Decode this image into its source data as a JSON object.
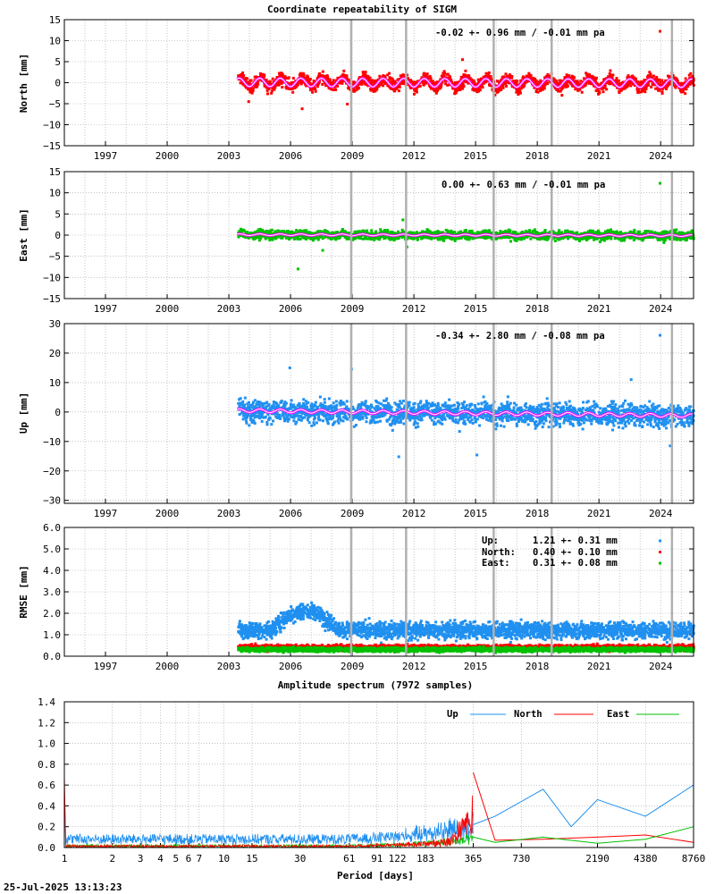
{
  "page": {
    "station": "SIGM",
    "timestamp": "25-Jul-2025 13:13:23"
  },
  "colors": {
    "north": "#ff0000",
    "east": "#00c000",
    "up": "#2090f0",
    "model": "#ff00ff",
    "model_core": "#ffffff",
    "event": "#b0b0b0",
    "grid": "#a0a0a0"
  },
  "chart_data": [
    {
      "id": "north",
      "type": "scatter",
      "title": "Coordinate repeatability of SIGM",
      "ylabel": "North [mm]",
      "xlim": [
        1995.0,
        2025.6
      ],
      "ylim": [
        -15,
        15
      ],
      "yticks": [
        15,
        10,
        5,
        0,
        -5,
        -10,
        -15
      ],
      "ytick_labels": [
        "15",
        "10",
        "5",
        "0",
        "−5",
        "−10",
        "−15"
      ],
      "xticks": [
        1997,
        2000,
        2003,
        2006,
        2009,
        2012,
        2015,
        2018,
        2021,
        2024
      ],
      "xtick_labels": [
        "1997",
        "2000",
        "2003",
        "2006",
        "2009",
        "2012",
        "2015",
        "2018",
        "2021",
        "2024"
      ],
      "data_start": 2003.4,
      "data_end": 2025.55,
      "series": [
        {
          "name": "North",
          "color": "#ff0000",
          "mean": -0.02,
          "wrms": 0.96,
          "annual_amp": 1.0,
          "trend": -0.01,
          "spread": 1.3,
          "outliers": [
            [
              2006.5,
              -6.2
            ],
            [
              2008.7,
              -5.1
            ],
            [
              2014.3,
              5.5
            ],
            [
              2003.9,
              -4.5
            ]
          ]
        }
      ],
      "legend": "-0.02 +- 0.96 mm / -0.01 mm pa",
      "event_epochs": [
        2008.95,
        2011.62,
        2015.88,
        2018.7,
        2024.55
      ]
    },
    {
      "id": "east",
      "type": "scatter",
      "ylabel": "East [mm]",
      "xlim": [
        1995.0,
        2025.6
      ],
      "ylim": [
        -15,
        15
      ],
      "yticks": [
        15,
        10,
        5,
        0,
        -5,
        -10,
        -15
      ],
      "ytick_labels": [
        "15",
        "10",
        "5",
        "0",
        "−5",
        "−10",
        "−15"
      ],
      "xticks": [
        1997,
        2000,
        2003,
        2006,
        2009,
        2012,
        2015,
        2018,
        2021,
        2024
      ],
      "xtick_labels": [
        "1997",
        "2000",
        "2003",
        "2006",
        "2009",
        "2012",
        "2015",
        "2018",
        "2021",
        "2024"
      ],
      "data_start": 2003.4,
      "data_end": 2025.55,
      "series": [
        {
          "name": "East",
          "color": "#00c000",
          "mean": 0.0,
          "wrms": 0.63,
          "annual_amp": 0.2,
          "trend": -0.01,
          "spread": 0.9,
          "outliers": [
            [
              2006.3,
              -8.0
            ],
            [
              2007.5,
              -3.6
            ],
            [
              2011.4,
              3.6
            ],
            [
              2011.6,
              -2.8
            ]
          ]
        }
      ],
      "legend": "0.00 +- 0.63 mm / -0.01 mm pa",
      "event_epochs": [
        2008.95,
        2011.62,
        2015.88,
        2018.7,
        2024.55
      ]
    },
    {
      "id": "up",
      "type": "scatter",
      "ylabel": "Up [mm]",
      "xlim": [
        1995.0,
        2025.6
      ],
      "ylim": [
        -31,
        30
      ],
      "yticks": [
        30,
        20,
        10,
        0,
        -10,
        -20,
        -30
      ],
      "ytick_labels": [
        "30",
        "20",
        "10",
        "0",
        "−10",
        "−20",
        "−30"
      ],
      "xticks": [
        1997,
        2000,
        2003,
        2006,
        2009,
        2012,
        2015,
        2018,
        2021,
        2024
      ],
      "xtick_labels": [
        "1997",
        "2000",
        "2003",
        "2006",
        "2009",
        "2012",
        "2015",
        "2018",
        "2021",
        "2024"
      ],
      "data_start": 2003.4,
      "data_end": 2025.55,
      "series": [
        {
          "name": "Up",
          "color": "#2090f0",
          "mean": -0.34,
          "wrms": 2.8,
          "annual_amp": 0.6,
          "trend": -0.08,
          "spread": 3.4,
          "outliers": [
            [
              2008.9,
              14.5
            ],
            [
              2011.2,
              -15.2
            ],
            [
              2015.0,
              -14.6
            ],
            [
              2005.9,
              15.0
            ],
            [
              2024.4,
              -11.5
            ],
            [
              2022.5,
              11.0
            ]
          ]
        }
      ],
      "legend": "-0.34 +- 2.80 mm / -0.08 mm pa",
      "event_epochs": [
        2008.95,
        2011.62,
        2015.88,
        2018.7,
        2024.55
      ]
    },
    {
      "id": "rmse",
      "type": "scatter",
      "ylabel": "RMSE [mm]",
      "xlim": [
        1995.0,
        2025.6
      ],
      "ylim": [
        0,
        6
      ],
      "yticks": [
        6,
        5,
        4,
        3,
        2,
        1,
        0
      ],
      "ytick_labels": [
        "6.0",
        "5.0",
        "4.0",
        "3.0",
        "2.0",
        "1.0",
        "0.0"
      ],
      "xticks": [
        1997,
        2000,
        2003,
        2006,
        2009,
        2012,
        2015,
        2018,
        2021,
        2024
      ],
      "xtick_labels": [
        "1997",
        "2000",
        "2003",
        "2006",
        "2009",
        "2012",
        "2015",
        "2018",
        "2021",
        "2024"
      ],
      "data_start": 2003.4,
      "data_end": 2025.55,
      "series": [
        {
          "name": "Up",
          "color": "#2090f0",
          "mean": 1.21,
          "std": 0.31,
          "legend_label": "Up:",
          "legend_value": "1.21 +- 0.31 mm"
        },
        {
          "name": "North",
          "color": "#ff0000",
          "mean": 0.4,
          "std": 0.1,
          "legend_label": "North:",
          "legend_value": "0.40 +- 0.10 mm"
        },
        {
          "name": "East",
          "color": "#00c000",
          "mean": 0.31,
          "std": 0.08,
          "legend_label": "East:",
          "legend_value": "0.31 +- 0.08 mm"
        }
      ],
      "event_epochs": [
        2008.95,
        2011.62,
        2015.88,
        2018.7,
        2024.55
      ]
    },
    {
      "id": "spectrum",
      "type": "line",
      "title": "Amplitude spectrum (7972 samples)",
      "xlabel": "Period [days]",
      "xscale": "log",
      "xlim": [
        1,
        8760
      ],
      "ylim": [
        0,
        1.4
      ],
      "yticks": [
        1.4,
        1.2,
        1.0,
        0.8,
        0.6,
        0.4,
        0.2,
        0.0
      ],
      "ytick_labels": [
        "1.4",
        "1.2",
        "1.0",
        "0.8",
        "0.6",
        "0.4",
        "0.2",
        "0.0"
      ],
      "xticks": [
        1,
        2,
        3,
        4,
        5,
        6,
        7,
        10,
        15,
        30,
        61,
        91,
        122,
        183,
        365,
        730,
        2190,
        4380,
        8760
      ],
      "xtick_labels": [
        "1",
        "2",
        "3",
        "4",
        "5",
        "6",
        "7",
        "10",
        "15",
        "30",
        "61",
        "91",
        "122",
        "183",
        "365",
        "730",
        "2190",
        "4380",
        "8760"
      ],
      "peaks": [
        {
          "series": "North",
          "period": 1.0,
          "amplitude": 0.72
        },
        {
          "series": "North",
          "period": 365,
          "amplitude": 0.72
        },
        {
          "series": "Up",
          "period": 1.0,
          "amplitude": 0.6
        }
      ],
      "long_period": {
        "Up": [
          [
            365,
            0.22
          ],
          [
            500,
            0.3
          ],
          [
            1000,
            0.56
          ],
          [
            1500,
            0.2
          ],
          [
            2190,
            0.46
          ],
          [
            4380,
            0.3
          ],
          [
            8760,
            0.6
          ]
        ],
        "North": [
          [
            365,
            0.72
          ],
          [
            500,
            0.07
          ],
          [
            1000,
            0.08
          ],
          [
            2190,
            0.1
          ],
          [
            4380,
            0.12
          ],
          [
            8760,
            0.05
          ]
        ],
        "East": [
          [
            365,
            0.1
          ],
          [
            500,
            0.05
          ],
          [
            1000,
            0.1
          ],
          [
            2190,
            0.04
          ],
          [
            4380,
            0.08
          ],
          [
            8760,
            0.2
          ]
        ]
      },
      "series": [
        {
          "name": "Up",
          "color": "#2090f0"
        },
        {
          "name": "North",
          "color": "#ff0000"
        },
        {
          "name": "East",
          "color": "#00c000"
        }
      ]
    }
  ]
}
